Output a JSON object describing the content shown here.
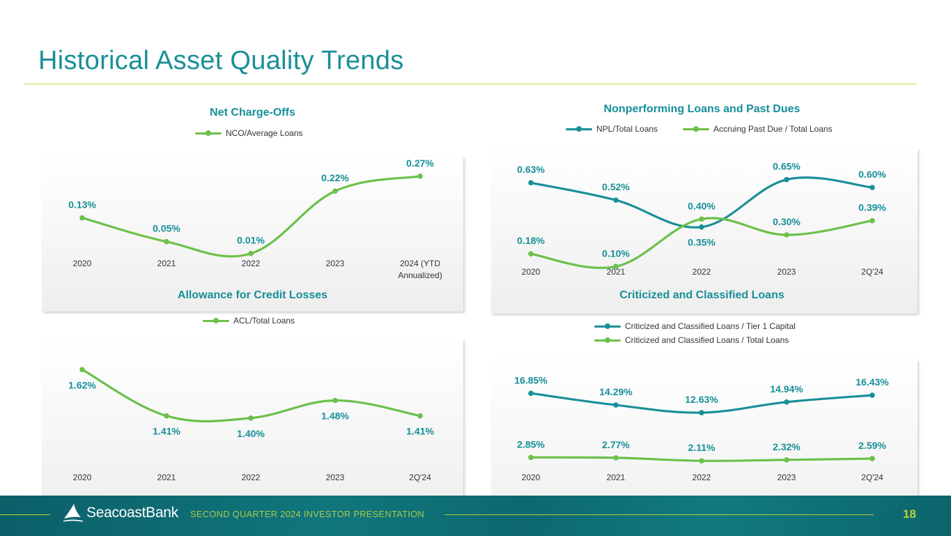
{
  "header": {
    "title": "Historical Asset Quality Trends"
  },
  "footer": {
    "brand": "SeacoastBank",
    "subtitle": "SECOND QUARTER 2024 INVESTOR PRESENTATION",
    "page_number": "18"
  },
  "colors": {
    "teal": "#1a8f98",
    "green": "#6cc04a",
    "dark_teal": "#168f98",
    "accent": "#c9d94a"
  },
  "chart_data": [
    {
      "id": "nco",
      "type": "line",
      "title": "Net Charge-Offs",
      "categories": [
        "2020",
        "2021",
        "2022",
        "2023",
        "2024 (YTD Annualized)"
      ],
      "category_lines": [
        [
          "2020"
        ],
        [
          "2021"
        ],
        [
          "2022"
        ],
        [
          "2023"
        ],
        [
          "2024 (YTD",
          "Annualized)"
        ]
      ],
      "ylim": [
        0.0,
        0.3
      ],
      "series": [
        {
          "name": "NCO/Average Loans",
          "color": "#6cc04a",
          "values": [
            0.13,
            0.05,
            0.01,
            0.22,
            0.27
          ],
          "labels": [
            "0.13%",
            "0.05%",
            "0.01%",
            "0.22%",
            "0.27%"
          ],
          "label_pos": [
            "above",
            "above",
            "above",
            "above",
            "above"
          ]
        }
      ]
    },
    {
      "id": "npl",
      "type": "line",
      "title": "Nonperforming Loans and Past Dues",
      "categories": [
        "2020",
        "2021",
        "2022",
        "2023",
        "2Q'24"
      ],
      "category_lines": [
        [
          "2020"
        ],
        [
          "2021"
        ],
        [
          "2022"
        ],
        [
          "2023"
        ],
        [
          "2Q'24"
        ]
      ],
      "ylim": [
        0.0,
        0.75
      ],
      "series": [
        {
          "name": "NPL/Total Loans",
          "color": "#1a8f98",
          "values": [
            0.63,
            0.52,
            0.35,
            0.65,
            0.6
          ],
          "labels": [
            "0.63%",
            "0.52%",
            "0.35%",
            "0.65%",
            "0.60%"
          ],
          "label_pos": [
            "above",
            "above",
            "below",
            "above",
            "above"
          ]
        },
        {
          "name": "Accruing Past Due / Total Loans",
          "color": "#6cc04a",
          "values": [
            0.18,
            0.1,
            0.4,
            0.3,
            0.39
          ],
          "labels": [
            "0.18%",
            "0.10%",
            "0.40%",
            "0.30%",
            "0.39%"
          ],
          "label_pos": [
            "above",
            "above",
            "above",
            "above",
            "above"
          ]
        }
      ]
    },
    {
      "id": "acl",
      "type": "line",
      "title": "Allowance for Credit Losses",
      "categories": [
        "2020",
        "2021",
        "2022",
        "2023",
        "2Q'24"
      ],
      "category_lines": [
        [
          "2020"
        ],
        [
          "2021"
        ],
        [
          "2022"
        ],
        [
          "2023"
        ],
        [
          "2Q'24"
        ]
      ],
      "ylim": [
        1.2,
        1.7
      ],
      "series": [
        {
          "name": "ACL/Total Loans",
          "color": "#6cc04a",
          "values": [
            1.62,
            1.41,
            1.4,
            1.48,
            1.41
          ],
          "labels": [
            "1.62%",
            "1.41%",
            "1.40%",
            "1.48%",
            "1.41%"
          ],
          "label_pos": [
            "below",
            "below",
            "below",
            "below",
            "below"
          ]
        }
      ]
    },
    {
      "id": "ccl",
      "type": "line",
      "title": "Criticized and Classified Loans",
      "categories": [
        "2020",
        "2021",
        "2022",
        "2023",
        "2Q'24"
      ],
      "category_lines": [
        [
          "2020"
        ],
        [
          "2021"
        ],
        [
          "2022"
        ],
        [
          "2023"
        ],
        [
          "2Q'24"
        ]
      ],
      "ylim": [
        0.0,
        21.0
      ],
      "series": [
        {
          "name": "Criticized and Classified Loans / Tier 1 Capital",
          "color": "#1a8f98",
          "values": [
            16.85,
            14.29,
            12.63,
            14.94,
            16.43
          ],
          "labels": [
            "16.85%",
            "14.29%",
            "12.63%",
            "14.94%",
            "16.43%"
          ],
          "label_pos": [
            "above",
            "above",
            "above",
            "above",
            "above"
          ]
        },
        {
          "name": "Criticized and Classified Loans / Total Loans",
          "color": "#6cc04a",
          "values": [
            2.85,
            2.77,
            2.11,
            2.32,
            2.59
          ],
          "labels": [
            "2.85%",
            "2.77%",
            "2.11%",
            "2.32%",
            "2.59%"
          ],
          "label_pos": [
            "above",
            "above",
            "above",
            "above",
            "above"
          ]
        }
      ]
    }
  ]
}
